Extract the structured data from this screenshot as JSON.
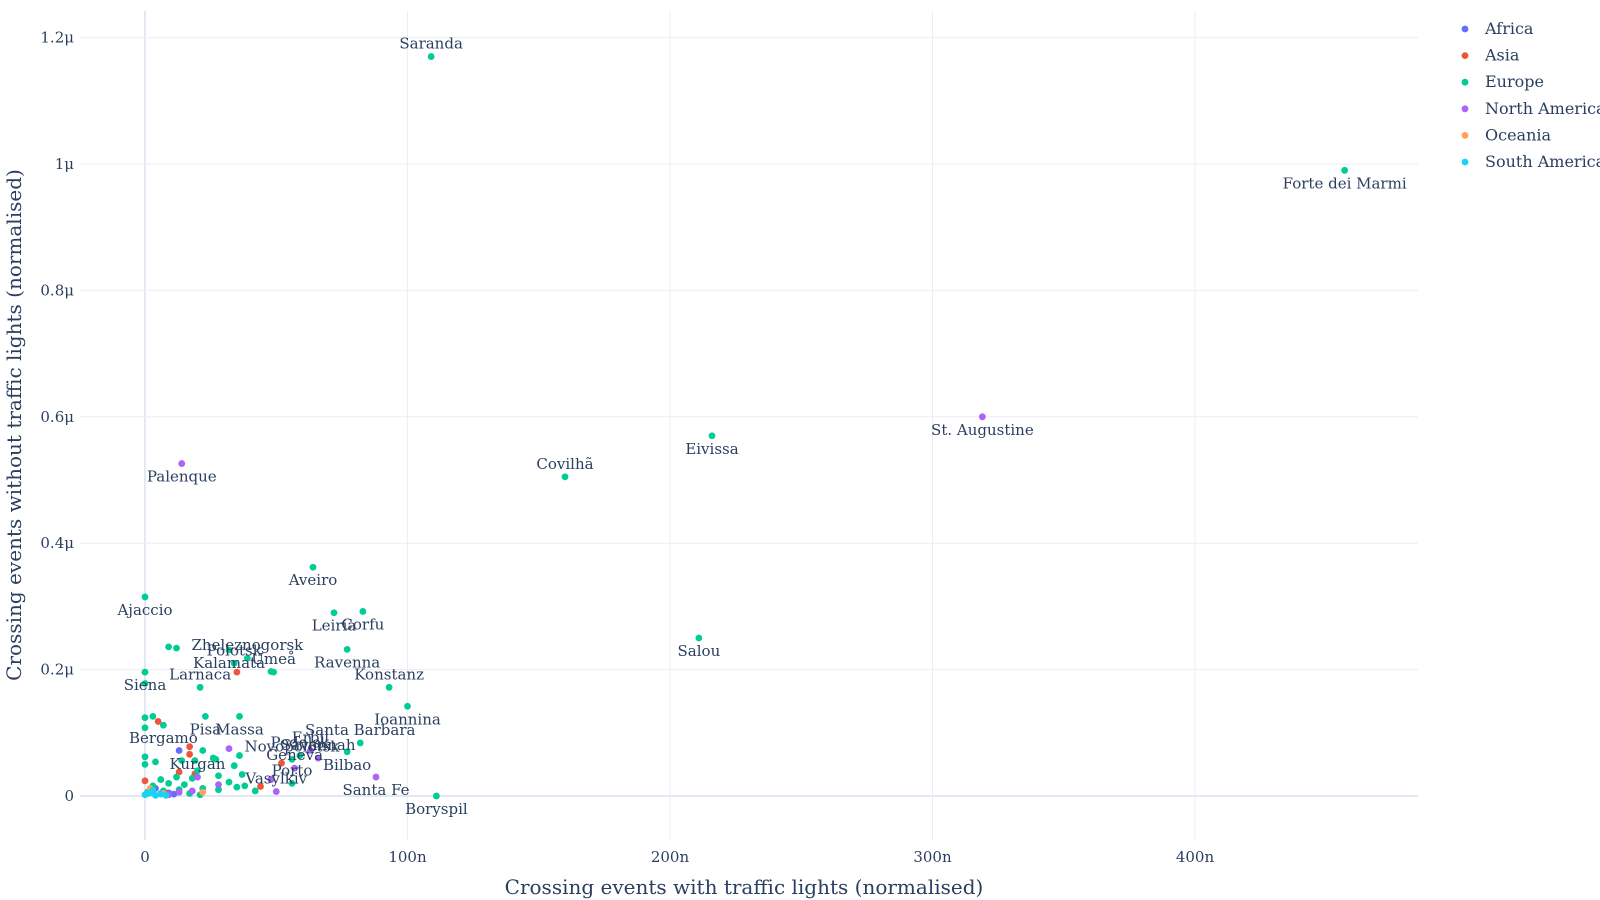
{
  "chart_data": {
    "type": "scatter",
    "xlabel": "Crossing events with traffic lights (normalised)",
    "ylabel": "Crossing events without traffic lights (normalised)",
    "xlim": [
      -2.3e-07,
      4.85e-07
    ],
    "ylim": [
      -7e-08,
      1.24e-06
    ],
    "x_ticks": [
      {
        "value": 0,
        "label": "0"
      },
      {
        "value": 1e-07,
        "label": "100n"
      },
      {
        "value": 2e-07,
        "label": "200n"
      },
      {
        "value": 3e-07,
        "label": "300n"
      },
      {
        "value": 4e-07,
        "label": "400n"
      }
    ],
    "y_ticks": [
      {
        "value": 0,
        "label": "0"
      },
      {
        "value": 2e-07,
        "label": "0.2μ"
      },
      {
        "value": 4e-07,
        "label": "0.4μ"
      },
      {
        "value": 6e-07,
        "label": "0.6μ"
      },
      {
        "value": 8e-07,
        "label": "0.8μ"
      },
      {
        "value": 1e-06,
        "label": "1μ"
      },
      {
        "value": 1.2e-06,
        "label": "1.2μ"
      }
    ],
    "grid": true,
    "legend_position": "top-right",
    "series": [
      {
        "name": "Africa",
        "color": "#636efa",
        "points": [
          {
            "x": 1.3e-08,
            "y": 7.2e-08
          },
          {
            "x": 9e-09,
            "y": 5e-09
          },
          {
            "x": 4e-09,
            "y": 1.2e-08
          },
          {
            "x": 1.1e-08,
            "y": 3e-09
          }
        ]
      },
      {
        "name": "Asia",
        "color": "#ef553b",
        "points": [
          {
            "x": 3.5e-08,
            "y": 1.96e-07
          },
          {
            "x": 5.2e-08,
            "y": 5.2e-08
          },
          {
            "x": 4.4e-08,
            "y": 1.5e-08
          },
          {
            "x": 5e-09,
            "y": 1.18e-07
          },
          {
            "x": 1.7e-08,
            "y": 7.8e-08
          },
          {
            "x": 1.7e-08,
            "y": 6.6e-08
          },
          {
            "x": 1.3e-08,
            "y": 3.8e-08
          },
          {
            "x": 1.9e-08,
            "y": 3.5e-08
          },
          {
            "x": 0,
            "y": 2.4e-08
          },
          {
            "x": 3e-09,
            "y": 1e-08
          },
          {
            "x": 8e-09,
            "y": 4e-09
          }
        ]
      },
      {
        "name": "Europe",
        "color": "#00cc96",
        "points": [
          {
            "x": 1.09e-07,
            "y": 1.17e-06,
            "label": "Saranda",
            "pos": "above"
          },
          {
            "x": 4.57e-07,
            "y": 9.9e-07,
            "label": "Forte dei Marmi",
            "pos": "below"
          },
          {
            "x": 2.16e-07,
            "y": 5.7e-07,
            "label": "Eivissa",
            "pos": "below"
          },
          {
            "x": 1.6e-07,
            "y": 5.05e-07,
            "label": "Covilhã",
            "pos": "above"
          },
          {
            "x": 6.4e-08,
            "y": 3.62e-07,
            "label": "Aveiro",
            "pos": "below"
          },
          {
            "x": 0,
            "y": 3.15e-07,
            "label": "Ajaccio",
            "pos": "below"
          },
          {
            "x": 2.11e-07,
            "y": 2.5e-07,
            "label": "Salou",
            "pos": "below"
          },
          {
            "x": 7.2e-08,
            "y": 2.9e-07,
            "label": "Leiria",
            "pos": "below"
          },
          {
            "x": 8.3e-08,
            "y": 2.92e-07,
            "label": "Corfu",
            "pos": "below"
          },
          {
            "x": 3.2e-08,
            "y": 2.31e-07,
            "label": "Kalamata",
            "pos": "below"
          },
          {
            "x": 4.9e-08,
            "y": 1.96e-07,
            "label": "Umeå",
            "pos": "above"
          },
          {
            "x": 7.7e-08,
            "y": 2.32e-07,
            "label": "Ravenna",
            "pos": "below"
          },
          {
            "x": 9.3e-08,
            "y": 1.72e-07,
            "label": "Konstanz",
            "pos": "above"
          },
          {
            "x": 2.1e-08,
            "y": 1.72e-07,
            "label": "Larnaca",
            "pos": "above"
          },
          {
            "x": 3.9e-08,
            "y": 2.18e-07,
            "label": "Zheleznogorsk",
            "pos": "above"
          },
          {
            "x": 3.4e-08,
            "y": 2.1e-07,
            "label": "Polotsk",
            "pos": "above"
          },
          {
            "x": 0,
            "y": 1.96e-07,
            "label": "Siena",
            "pos": "below"
          },
          {
            "x": 1e-07,
            "y": 1.42e-07,
            "label": "Ioannina",
            "pos": "below"
          },
          {
            "x": 7e-09,
            "y": 1.12e-07,
            "label": "Bergamo",
            "pos": "below"
          },
          {
            "x": 2.3e-08,
            "y": 1.26e-07,
            "label": "Pisa",
            "pos": "below"
          },
          {
            "x": 3.6e-08,
            "y": 1.26e-07,
            "label": "Massa",
            "pos": "below"
          },
          {
            "x": 5.9e-08,
            "y": 6.4e-08,
            "label": "Podolsk",
            "pos": "above"
          },
          {
            "x": 8.2e-08,
            "y": 8.4e-08,
            "label": "Santa Barbara",
            "pos": "above"
          },
          {
            "x": 5.6e-08,
            "y": 5.8e-08,
            "label": "Novopolotsk",
            "pos": "above"
          },
          {
            "x": 7.7e-08,
            "y": 7e-08,
            "label": "Bilbao",
            "pos": "below"
          },
          {
            "x": 5.6e-08,
            "y": 2e-08,
            "label": "Porto",
            "pos": "above"
          },
          {
            "x": 1.11e-07,
            "y": 0,
            "label": "Boryspil",
            "pos": "below"
          },
          {
            "x": 9e-09,
            "y": 2.36e-07
          },
          {
            "x": 1.2e-08,
            "y": 2.34e-07
          },
          {
            "x": 0,
            "y": 1.78e-07
          },
          {
            "x": 4.8e-08,
            "y": 1.97e-07
          },
          {
            "x": 0,
            "y": 1.24e-07
          },
          {
            "x": 0,
            "y": 1.08e-07
          },
          {
            "x": 3e-09,
            "y": 1.26e-07
          },
          {
            "x": 0,
            "y": 6.2e-08
          },
          {
            "x": 0,
            "y": 5e-08
          },
          {
            "x": 4e-09,
            "y": 5.4e-08
          },
          {
            "x": 2.2e-08,
            "y": 7.2e-08
          },
          {
            "x": 2.7e-08,
            "y": 5.8e-08
          },
          {
            "x": 3.6e-08,
            "y": 6.4e-08
          },
          {
            "x": 3.4e-08,
            "y": 4.8e-08
          },
          {
            "x": 3.7e-08,
            "y": 3.4e-08
          },
          {
            "x": 3.5e-08,
            "y": 1.4e-08
          },
          {
            "x": 2.6e-08,
            "y": 6e-08
          },
          {
            "x": 1.9e-08,
            "y": 5.6e-08
          },
          {
            "x": 1.4e-08,
            "y": 5.6e-08
          },
          {
            "x": 2e-08,
            "y": 4e-08
          },
          {
            "x": 3.2e-08,
            "y": 2.2e-08
          },
          {
            "x": 3.8e-08,
            "y": 1.6e-08
          },
          {
            "x": 4.2e-08,
            "y": 8e-09
          },
          {
            "x": 2.8e-08,
            "y": 1e-08
          },
          {
            "x": 1.8e-08,
            "y": 2.8e-08
          },
          {
            "x": 2.2e-08,
            "y": 1.2e-08
          },
          {
            "x": 9e-09,
            "y": 2e-08
          },
          {
            "x": 1.2e-08,
            "y": 3e-08
          },
          {
            "x": 6e-09,
            "y": 2.6e-08
          },
          {
            "x": 3e-09,
            "y": 1.6e-08
          },
          {
            "x": 1.5e-08,
            "y": 1.8e-08
          },
          {
            "x": 1e-09,
            "y": 6e-09
          },
          {
            "x": 7e-09,
            "y": 8e-09
          },
          {
            "x": 1.7e-08,
            "y": 4e-09
          },
          {
            "x": 2.1e-08,
            "y": 2e-09
          },
          {
            "x": 1.3e-08,
            "y": 1e-08
          },
          {
            "x": 2.8e-08,
            "y": 3.2e-08
          }
        ]
      },
      {
        "name": "North America",
        "color": "#ab63fa",
        "points": [
          {
            "x": 3.19e-07,
            "y": 6e-07,
            "label": "St. Augustine",
            "pos": "below"
          },
          {
            "x": 1.4e-08,
            "y": 5.26e-07,
            "label": "Palenque",
            "pos": "below"
          },
          {
            "x": 6.3e-08,
            "y": 7.2e-08,
            "label": "Erbil",
            "pos": "above"
          },
          {
            "x": 6.6e-08,
            "y": 6e-08,
            "label": "Savannah",
            "pos": "above"
          },
          {
            "x": 5.7e-08,
            "y": 4.4e-08,
            "label": "Geneva",
            "pos": "above"
          },
          {
            "x": 8.8e-08,
            "y": 3e-08,
            "label": "Santa Fe",
            "pos": "below"
          },
          {
            "x": 5e-08,
            "y": 7e-09,
            "label": "Vasylkiv",
            "pos": "above"
          },
          {
            "x": 2e-08,
            "y": 3e-08,
            "label": "Kurgan",
            "pos": "above"
          },
          {
            "x": 3.2e-08,
            "y": 7.5e-08
          },
          {
            "x": 4.8e-08,
            "y": 2.6e-08
          },
          {
            "x": 2.8e-08,
            "y": 1.8e-08
          },
          {
            "x": 1.8e-08,
            "y": 8e-09
          },
          {
            "x": 1.3e-08,
            "y": 6e-09
          },
          {
            "x": 9e-09,
            "y": 2e-09
          },
          {
            "x": 6e-09,
            "y": 4e-09
          }
        ]
      },
      {
        "name": "Oceania",
        "color": "#ffa15a",
        "points": [
          {
            "x": 2.2e-08,
            "y": 6e-09
          },
          {
            "x": 7e-09,
            "y": 4e-09
          },
          {
            "x": 2e-09,
            "y": 1.2e-08
          }
        ]
      },
      {
        "name": "South America",
        "color": "#19d3f3",
        "points": [
          {
            "x": 0,
            "y": 2e-09
          },
          {
            "x": 2e-09,
            "y": 5e-09
          },
          {
            "x": 4e-09,
            "y": 1e-09
          },
          {
            "x": 6e-09,
            "y": 3e-09
          },
          {
            "x": 3e-09,
            "y": 9e-09
          },
          {
            "x": 1e-09,
            "y": 4e-09
          },
          {
            "x": 8e-09,
            "y": 1e-09
          }
        ]
      }
    ]
  }
}
